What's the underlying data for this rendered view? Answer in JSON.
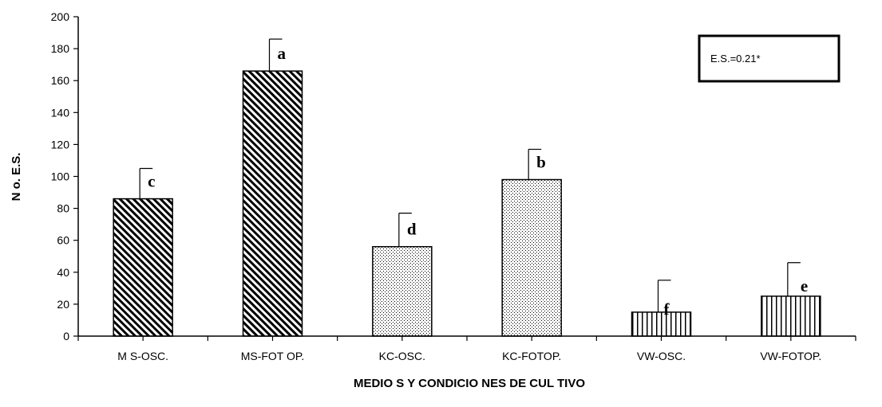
{
  "chart_data": {
    "type": "bar",
    "title": "",
    "xlabel": "MEDIO S Y CONDICIO NES DE CUL TIVO",
    "ylabel": "N o. E.S.",
    "ylim": [
      0,
      200
    ],
    "yticks": [
      0,
      20,
      40,
      60,
      80,
      100,
      120,
      140,
      160,
      180,
      200
    ],
    "grid": false,
    "legend": null,
    "categories": [
      "M S-OSC.",
      "MS-FOT OP.",
      "KC-OSC.",
      "KC-FOTOP.",
      "VW-OSC.",
      "VW-FOTOP."
    ],
    "values": [
      86,
      166,
      56,
      98,
      15,
      25
    ],
    "error_upper": [
      105,
      186,
      77,
      117,
      35,
      46
    ],
    "significance_letters": [
      "c",
      "a",
      "d",
      "b",
      "f",
      "e"
    ],
    "fill_patterns": [
      "diagonal-hatch",
      "diagonal-hatch",
      "dots",
      "dots",
      "vertical-lines",
      "vertical-lines"
    ],
    "annotation": "E.S.=0.21*",
    "colors": {
      "bar_stroke": "#000000",
      "background": "#ffffff"
    }
  }
}
